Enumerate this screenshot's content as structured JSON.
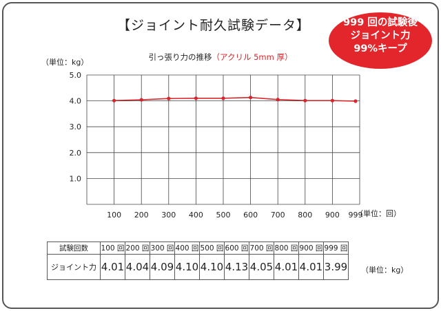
{
  "title": "【ジョイント耐久試験データ】",
  "badge": {
    "line1": "999 回の試験後",
    "line2": "ジョイント力",
    "line3": "99%キープ"
  },
  "chart": {
    "subtitle_main": "引っ張り力の推移",
    "subtitle_note": "（アクリル 5mm 厚）",
    "y_unit": "（単位：kg）",
    "x_unit": "（単位：回）",
    "line_color": "#d7262b"
  },
  "chart_data": {
    "type": "line",
    "title": "引っ張り力の推移（アクリル 5mm 厚）",
    "xlabel": "（単位：回）",
    "ylabel": "（単位：kg）",
    "categories": [
      "100",
      "200",
      "300",
      "400",
      "500",
      "600",
      "700",
      "800",
      "900",
      "999"
    ],
    "values": [
      4.01,
      4.04,
      4.09,
      4.1,
      4.1,
      4.13,
      4.05,
      4.01,
      4.01,
      3.99
    ],
    "y_ticks": [
      "1.0",
      "2.0",
      "3.0",
      "4.0",
      "5.0"
    ],
    "ylim": [
      0,
      5
    ],
    "grid": true
  },
  "table": {
    "row1_header": "試験回数",
    "row2_header": "ジョイント力",
    "counts": [
      "100 回",
      "200 回",
      "300 回",
      "400 回",
      "500 回",
      "600 回",
      "700 回",
      "800 回",
      "900 回",
      "999 回"
    ],
    "values": [
      "4.01",
      "4.04",
      "4.09",
      "4.10",
      "4.10",
      "4.13",
      "4.05",
      "4.01",
      "4.01",
      "3.99"
    ],
    "unit": "（単位：kg）"
  }
}
